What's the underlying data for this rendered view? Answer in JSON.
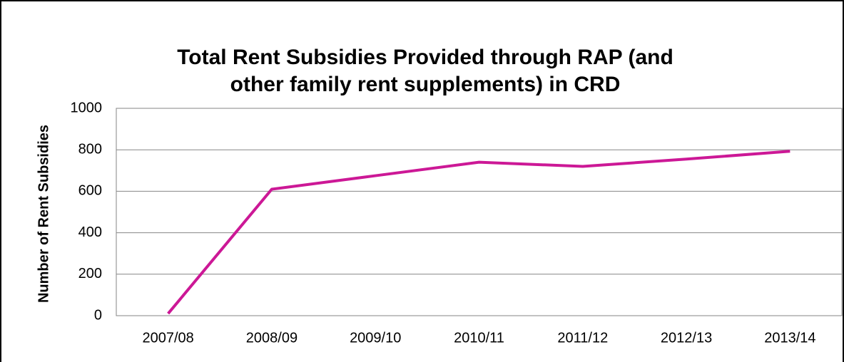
{
  "chart_data": {
    "type": "line",
    "title": [
      "Total Rent Subsidies Provided through RAP (and",
      "other family rent supplements) in CRD"
    ],
    "y_label": "Number of Rent Subsidies",
    "categories": [
      "2007/08",
      "2008/09",
      "2009/10",
      "2010/11",
      "2011/12",
      "2012/13",
      "2013/14"
    ],
    "series": [
      {
        "name": "Total Rent Subsidies",
        "color": "#cc1896",
        "values": [
          10,
          610,
          675,
          740,
          720,
          755,
          793
        ]
      }
    ],
    "ylim": [
      0,
      1000
    ],
    "yticks": [
      0,
      200,
      400,
      600,
      800,
      1000
    ],
    "grid": true
  }
}
